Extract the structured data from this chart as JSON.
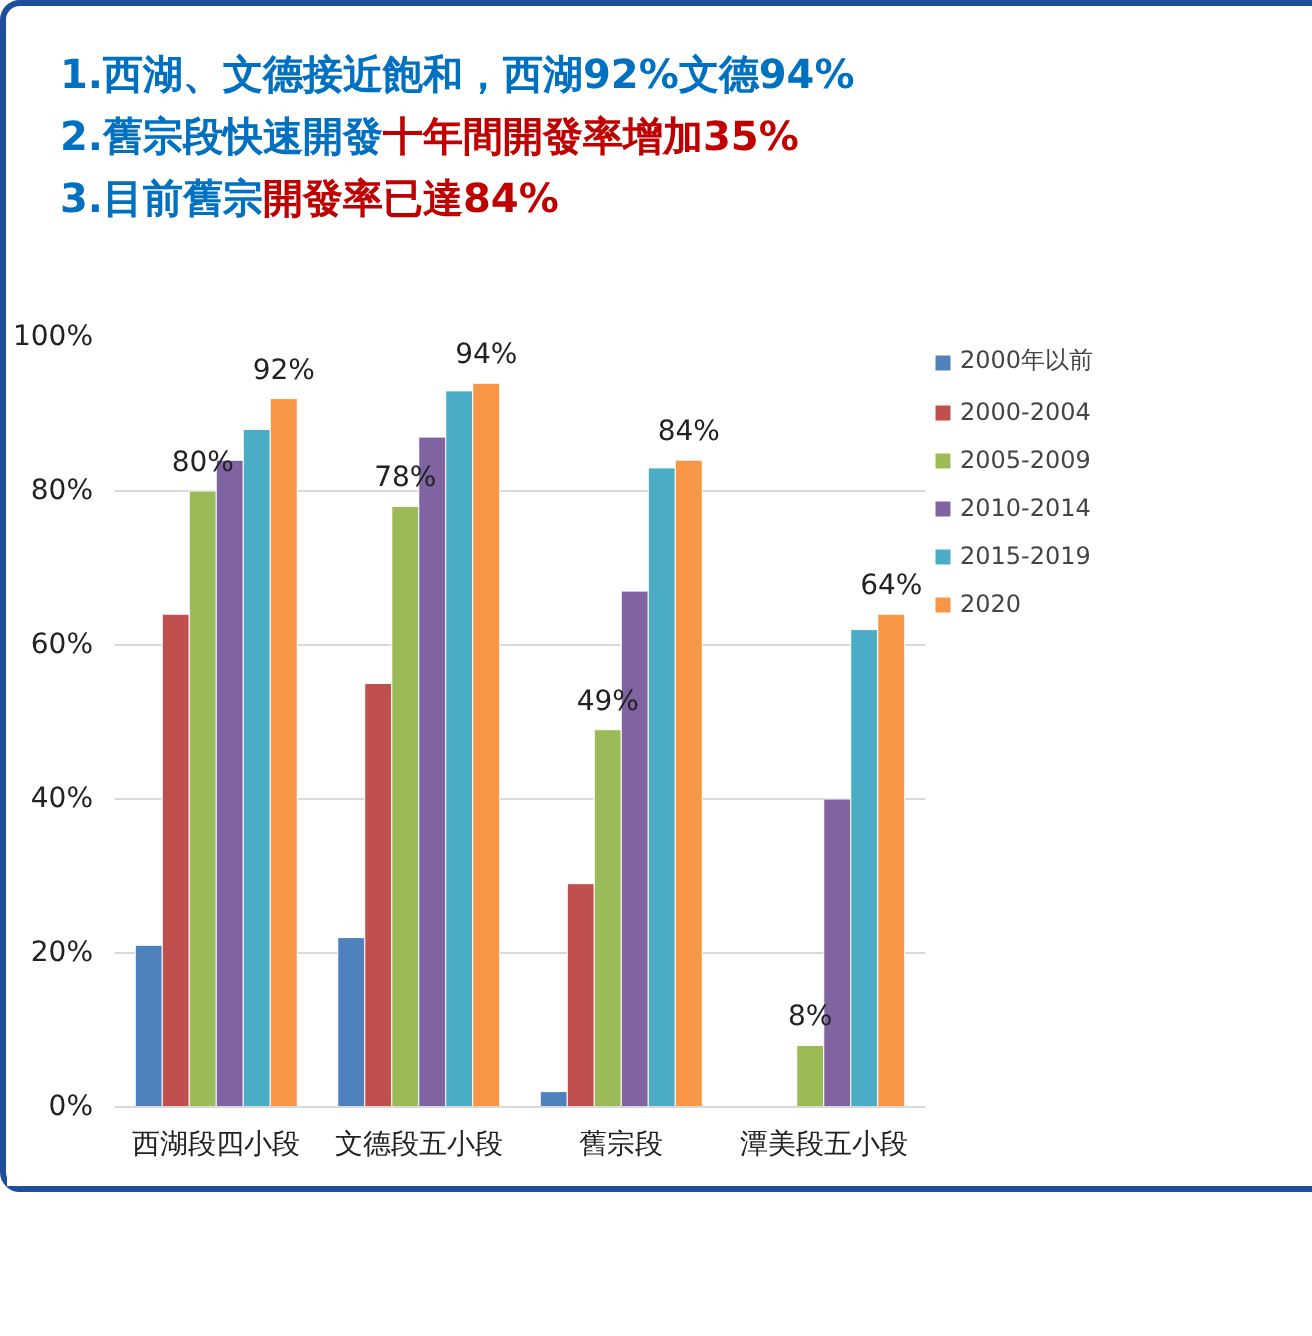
{
  "chart_data": {
    "type": "bar",
    "annotations": [
      "1.西湖、文德接近飽和，西湖92%文德94%",
      "2.舊宗段快速開發",
      "十年間開發率增加35%",
      "3.目前舊宗",
      "開發率已達84%"
    ],
    "categories": [
      "西湖段四小段",
      "文德段五小段",
      "舊宗段",
      "潭美段五小段"
    ],
    "series": [
      {
        "name": "2000年以前",
        "color": "#4f81bd",
        "values": [
          21,
          22,
          2,
          null
        ]
      },
      {
        "name": "2000-2004",
        "color": "#c0504d",
        "values": [
          64,
          55,
          29,
          null
        ]
      },
      {
        "name": "2005-2009",
        "color": "#9bbb59",
        "values": [
          80,
          78,
          49,
          8
        ],
        "value_labels": [
          "80%",
          "78%",
          "49%",
          "8%"
        ]
      },
      {
        "name": "2010-2014",
        "color": "#8064a2",
        "values": [
          84,
          87,
          67,
          40
        ]
      },
      {
        "name": "2015-2019",
        "color": "#4bacc6",
        "values": [
          88,
          93,
          83,
          62
        ]
      },
      {
        "name": "2020",
        "color": "#f79646",
        "values": [
          92,
          94,
          84,
          64
        ],
        "value_labels": [
          "92%",
          "94%",
          "84%",
          "64%"
        ]
      }
    ],
    "ylim": [
      0,
      100
    ],
    "yticks": [
      {
        "value": 0,
        "label": "0%"
      },
      {
        "value": 20,
        "label": "20%"
      },
      {
        "value": 40,
        "label": "40%"
      },
      {
        "value": 60,
        "label": "60%"
      },
      {
        "value": 80,
        "label": "80%"
      },
      {
        "value": 100,
        "label": "100%"
      }
    ],
    "grid": "y",
    "legend": "right"
  }
}
